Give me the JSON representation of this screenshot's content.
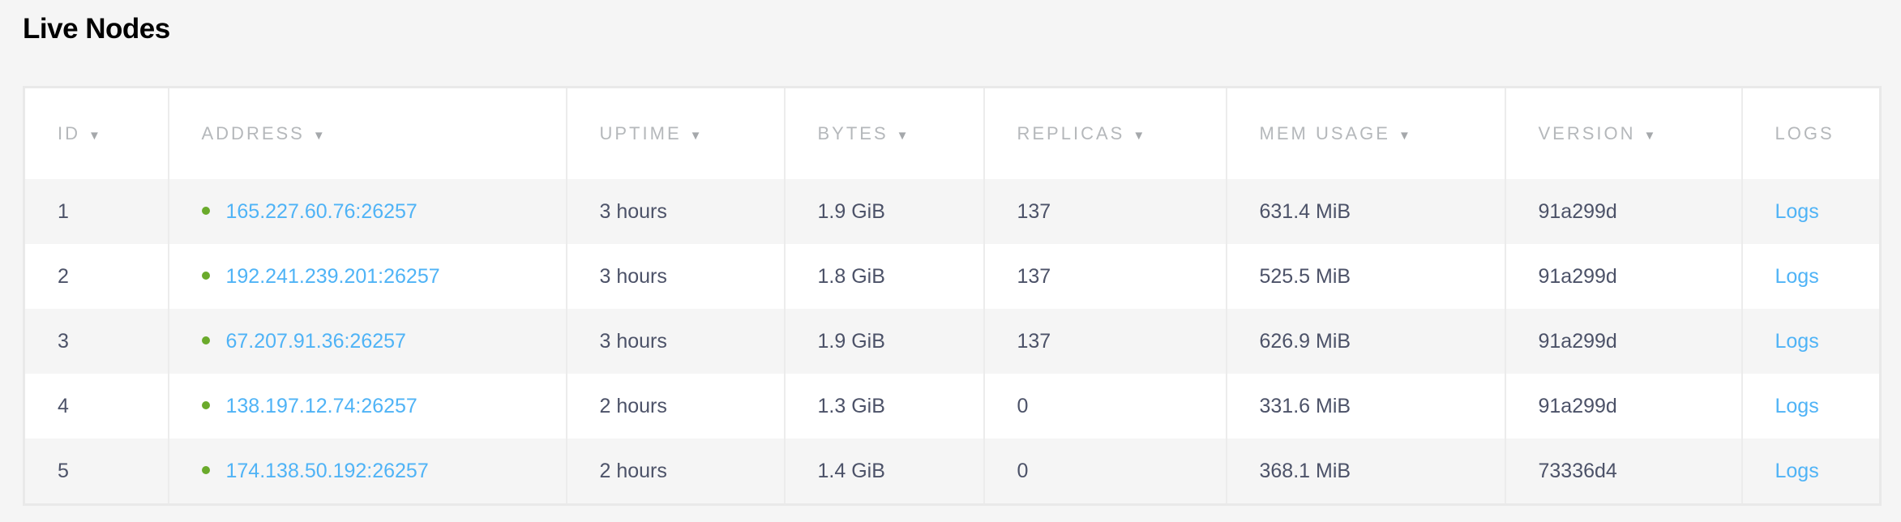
{
  "title": "Live Nodes",
  "colors": {
    "link": "#4fb3f6",
    "status_live": "#6aaa2b",
    "header_text": "#b5b8bb",
    "cell_text": "#4c5268"
  },
  "columns": [
    {
      "label": "ID",
      "sortable": true,
      "icon": "sort-down-icon"
    },
    {
      "label": "ADDRESS",
      "sortable": true,
      "icon": "sort-down-icon"
    },
    {
      "label": "UPTIME",
      "sortable": true,
      "icon": "sort-down-icon"
    },
    {
      "label": "BYTES",
      "sortable": true,
      "icon": "sort-down-icon"
    },
    {
      "label": "REPLICAS",
      "sortable": true,
      "icon": "sort-down-icon"
    },
    {
      "label": "MEM USAGE",
      "sortable": true,
      "icon": "sort-down-icon"
    },
    {
      "label": "VERSION",
      "sortable": true,
      "icon": "sort-down-icon"
    },
    {
      "label": "LOGS",
      "sortable": false
    }
  ],
  "sort_arrow": "▼",
  "rows": [
    {
      "id": "1",
      "address": "165.227.60.76:26257",
      "uptime": "3 hours",
      "bytes": "1.9 GiB",
      "replicas": "137",
      "mem": "631.4 MiB",
      "version": "91a299d",
      "logs": "Logs"
    },
    {
      "id": "2",
      "address": "192.241.239.201:26257",
      "uptime": "3 hours",
      "bytes": "1.8 GiB",
      "replicas": "137",
      "mem": "525.5 MiB",
      "version": "91a299d",
      "logs": "Logs"
    },
    {
      "id": "3",
      "address": "67.207.91.36:26257",
      "uptime": "3 hours",
      "bytes": "1.9 GiB",
      "replicas": "137",
      "mem": "626.9 MiB",
      "version": "91a299d",
      "logs": "Logs"
    },
    {
      "id": "4",
      "address": "138.197.12.74:26257",
      "uptime": "2 hours",
      "bytes": "1.3 GiB",
      "replicas": "0",
      "mem": "331.6 MiB",
      "version": "91a299d",
      "logs": "Logs"
    },
    {
      "id": "5",
      "address": "174.138.50.192:26257",
      "uptime": "2 hours",
      "bytes": "1.4 GiB",
      "replicas": "0",
      "mem": "368.1 MiB",
      "version": "73336d4",
      "logs": "Logs"
    }
  ]
}
